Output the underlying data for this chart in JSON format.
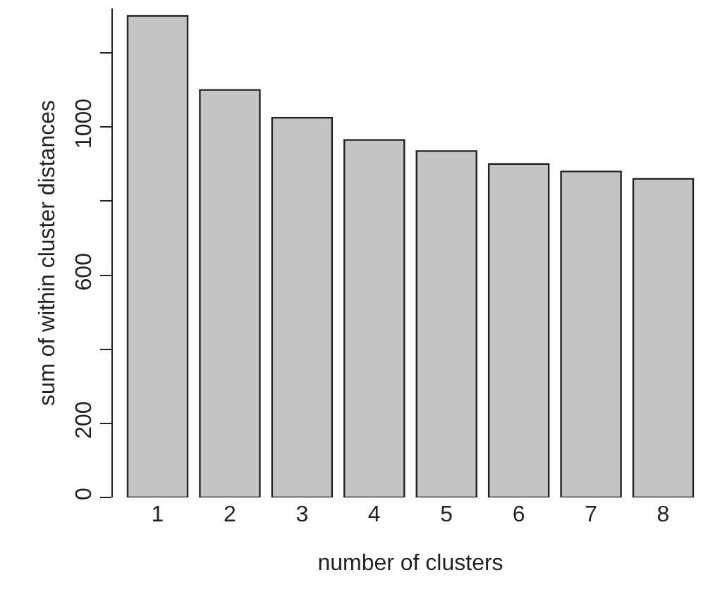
{
  "chart_data": {
    "type": "bar",
    "xlabel": "number of clusters",
    "ylabel": "sum of within cluster distances",
    "categories": [
      "1",
      "2",
      "3",
      "4",
      "5",
      "6",
      "7",
      "8"
    ],
    "values": [
      1300,
      1100,
      1025,
      965,
      935,
      900,
      880,
      860
    ],
    "color": "#c4c4c4",
    "ylim": [
      0,
      1320
    ],
    "yticks": [
      0,
      200,
      {
        "value": 400,
        "label": null
      },
      600,
      {
        "value": 800,
        "label": null
      },
      1000,
      {
        "value": 1200,
        "label": null
      }
    ],
    "tick_labels": true
  }
}
